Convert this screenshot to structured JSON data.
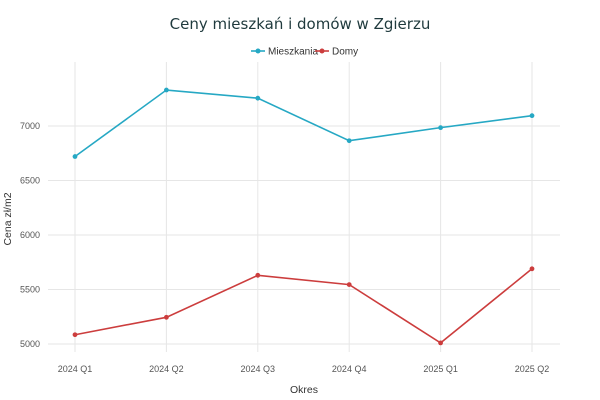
{
  "chart_data": {
    "type": "line",
    "title": "Ceny mieszkań i domów w Zgierzu",
    "xlabel": "Okres",
    "ylabel": "Cena zł/m2",
    "categories": [
      "2024 Q1",
      "2024 Q2",
      "2024 Q3",
      "2024 Q4",
      "2025 Q1",
      "2025 Q2"
    ],
    "yticks": [
      5000,
      5500,
      6000,
      6500,
      7000
    ],
    "ylim": [
      4980,
      7430
    ],
    "grid": true,
    "legend_position": "top-center",
    "series": [
      {
        "name": "Mieszkania",
        "color": "#26a8c4",
        "values": [
          6720,
          7330,
          7255,
          6865,
          6985,
          7095
        ]
      },
      {
        "name": "Domy",
        "color": "#cc3d3d",
        "values": [
          5085,
          5245,
          5630,
          5545,
          5010,
          5690
        ]
      }
    ]
  }
}
